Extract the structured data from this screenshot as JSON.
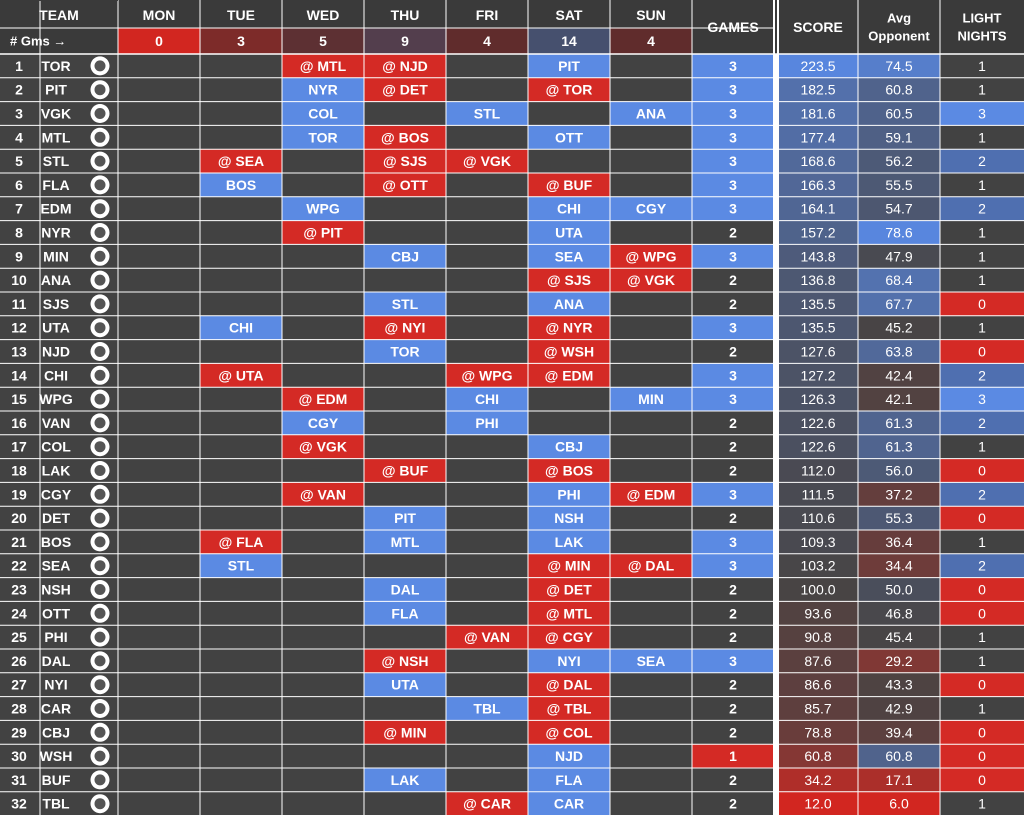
{
  "header": {
    "team": "TEAM",
    "days": [
      "MON",
      "TUE",
      "WED",
      "THU",
      "FRI",
      "SAT",
      "SUN"
    ],
    "games": "GAMES",
    "score": "SCORE",
    "avg_line1": "Avg",
    "avg_line2": "Opponent",
    "light_line1": "LIGHT",
    "light_line2": "NIGHTS",
    "gms_label": "# Gms →",
    "day_game_counts": [
      "0",
      "3",
      "5",
      "9",
      "4",
      "14",
      "4"
    ]
  },
  "colors": {
    "dark": "#424242",
    "blue": "#5b8ae3",
    "red": "#d42a25",
    "header": "#3a3a3a",
    "grid": "#ffffff"
  },
  "teams": [
    {
      "rank": "1",
      "abbr": "TOR",
      "logo": "toronto-maple-leafs-logo",
      "days": [
        "",
        "",
        "@ MTL",
        "@ NJD",
        "",
        "PIT",
        ""
      ],
      "games": "3",
      "score": "223.5",
      "avg": "74.5",
      "light": "1"
    },
    {
      "rank": "2",
      "abbr": "PIT",
      "logo": "pittsburgh-penguins-logo",
      "days": [
        "",
        "",
        "NYR",
        "@ DET",
        "",
        "@ TOR",
        ""
      ],
      "games": "3",
      "score": "182.5",
      "avg": "60.8",
      "light": "1"
    },
    {
      "rank": "3",
      "abbr": "VGK",
      "logo": "vegas-golden-knights-logo",
      "days": [
        "",
        "",
        "COL",
        "",
        "STL",
        "",
        "ANA"
      ],
      "games": "3",
      "score": "181.6",
      "avg": "60.5",
      "light": "3"
    },
    {
      "rank": "4",
      "abbr": "MTL",
      "logo": "montreal-canadiens-logo",
      "days": [
        "",
        "",
        "TOR",
        "@ BOS",
        "",
        "OTT",
        ""
      ],
      "games": "3",
      "score": "177.4",
      "avg": "59.1",
      "light": "1"
    },
    {
      "rank": "5",
      "abbr": "STL",
      "logo": "st-louis-blues-logo",
      "days": [
        "",
        "@ SEA",
        "",
        "@ SJS",
        "@ VGK",
        "",
        ""
      ],
      "games": "3",
      "score": "168.6",
      "avg": "56.2",
      "light": "2"
    },
    {
      "rank": "6",
      "abbr": "FLA",
      "logo": "florida-panthers-logo",
      "days": [
        "",
        "BOS",
        "",
        "@ OTT",
        "",
        "@ BUF",
        ""
      ],
      "games": "3",
      "score": "166.3",
      "avg": "55.5",
      "light": "1"
    },
    {
      "rank": "7",
      "abbr": "EDM",
      "logo": "edmonton-oilers-logo",
      "days": [
        "",
        "",
        "WPG",
        "",
        "",
        "CHI",
        "CGY"
      ],
      "games": "3",
      "score": "164.1",
      "avg": "54.7",
      "light": "2"
    },
    {
      "rank": "8",
      "abbr": "NYR",
      "logo": "new-york-rangers-logo",
      "days": [
        "",
        "",
        "@ PIT",
        "",
        "",
        "UTA",
        ""
      ],
      "games": "2",
      "score": "157.2",
      "avg": "78.6",
      "light": "1"
    },
    {
      "rank": "9",
      "abbr": "MIN",
      "logo": "minnesota-wild-logo",
      "days": [
        "",
        "",
        "",
        "CBJ",
        "",
        "SEA",
        "@ WPG"
      ],
      "games": "3",
      "score": "143.8",
      "avg": "47.9",
      "light": "1"
    },
    {
      "rank": "10",
      "abbr": "ANA",
      "logo": "anaheim-ducks-logo",
      "days": [
        "",
        "",
        "",
        "",
        "",
        "@ SJS",
        "@ VGK"
      ],
      "games": "2",
      "score": "136.8",
      "avg": "68.4",
      "light": "1"
    },
    {
      "rank": "11",
      "abbr": "SJS",
      "logo": "san-jose-sharks-logo",
      "days": [
        "",
        "",
        "",
        "STL",
        "",
        "ANA",
        ""
      ],
      "games": "2",
      "score": "135.5",
      "avg": "67.7",
      "light": "0"
    },
    {
      "rank": "12",
      "abbr": "UTA",
      "logo": "utah-hockey-club-logo",
      "days": [
        "",
        "CHI",
        "",
        "@ NYI",
        "",
        "@ NYR",
        ""
      ],
      "games": "3",
      "score": "135.5",
      "avg": "45.2",
      "light": "1"
    },
    {
      "rank": "13",
      "abbr": "NJD",
      "logo": "new-jersey-devils-logo",
      "days": [
        "",
        "",
        "",
        "TOR",
        "",
        "@ WSH",
        ""
      ],
      "games": "2",
      "score": "127.6",
      "avg": "63.8",
      "light": "0"
    },
    {
      "rank": "14",
      "abbr": "CHI",
      "logo": "chicago-blackhawks-logo",
      "days": [
        "",
        "@ UTA",
        "",
        "",
        "@ WPG",
        "@ EDM",
        ""
      ],
      "games": "3",
      "score": "127.2",
      "avg": "42.4",
      "light": "2"
    },
    {
      "rank": "15",
      "abbr": "WPG",
      "logo": "winnipeg-jets-logo",
      "days": [
        "",
        "",
        "@ EDM",
        "",
        "CHI",
        "",
        "MIN"
      ],
      "games": "3",
      "score": "126.3",
      "avg": "42.1",
      "light": "3"
    },
    {
      "rank": "16",
      "abbr": "VAN",
      "logo": "vancouver-canucks-logo",
      "days": [
        "",
        "",
        "CGY",
        "",
        "PHI",
        "",
        ""
      ],
      "games": "2",
      "score": "122.6",
      "avg": "61.3",
      "light": "2"
    },
    {
      "rank": "17",
      "abbr": "COL",
      "logo": "colorado-avalanche-logo",
      "days": [
        "",
        "",
        "@ VGK",
        "",
        "",
        "CBJ",
        ""
      ],
      "games": "2",
      "score": "122.6",
      "avg": "61.3",
      "light": "1"
    },
    {
      "rank": "18",
      "abbr": "LAK",
      "logo": "los-angeles-kings-logo",
      "days": [
        "",
        "",
        "",
        "@ BUF",
        "",
        "@ BOS",
        ""
      ],
      "games": "2",
      "score": "112.0",
      "avg": "56.0",
      "light": "0"
    },
    {
      "rank": "19",
      "abbr": "CGY",
      "logo": "calgary-flames-logo",
      "days": [
        "",
        "",
        "@ VAN",
        "",
        "",
        "PHI",
        "@ EDM"
      ],
      "games": "3",
      "score": "111.5",
      "avg": "37.2",
      "light": "2"
    },
    {
      "rank": "20",
      "abbr": "DET",
      "logo": "detroit-red-wings-logo",
      "days": [
        "",
        "",
        "",
        "PIT",
        "",
        "NSH",
        ""
      ],
      "games": "2",
      "score": "110.6",
      "avg": "55.3",
      "light": "0"
    },
    {
      "rank": "21",
      "abbr": "BOS",
      "logo": "boston-bruins-logo",
      "days": [
        "",
        "@ FLA",
        "",
        "MTL",
        "",
        "LAK",
        ""
      ],
      "games": "3",
      "score": "109.3",
      "avg": "36.4",
      "light": "1"
    },
    {
      "rank": "22",
      "abbr": "SEA",
      "logo": "seattle-kraken-logo",
      "days": [
        "",
        "STL",
        "",
        "",
        "",
        "@ MIN",
        "@ DAL"
      ],
      "games": "3",
      "score": "103.2",
      "avg": "34.4",
      "light": "2"
    },
    {
      "rank": "23",
      "abbr": "NSH",
      "logo": "nashville-predators-logo",
      "days": [
        "",
        "",
        "",
        "DAL",
        "",
        "@ DET",
        ""
      ],
      "games": "2",
      "score": "100.0",
      "avg": "50.0",
      "light": "0"
    },
    {
      "rank": "24",
      "abbr": "OTT",
      "logo": "ottawa-senators-logo",
      "days": [
        "",
        "",
        "",
        "FLA",
        "",
        "@ MTL",
        ""
      ],
      "games": "2",
      "score": "93.6",
      "avg": "46.8",
      "light": "0"
    },
    {
      "rank": "25",
      "abbr": "PHI",
      "logo": "philadelphia-flyers-logo",
      "days": [
        "",
        "",
        "",
        "",
        "@ VAN",
        "@ CGY",
        ""
      ],
      "games": "2",
      "score": "90.8",
      "avg": "45.4",
      "light": "1"
    },
    {
      "rank": "26",
      "abbr": "DAL",
      "logo": "dallas-stars-logo",
      "days": [
        "",
        "",
        "",
        "@ NSH",
        "",
        "NYI",
        "SEA"
      ],
      "games": "3",
      "score": "87.6",
      "avg": "29.2",
      "light": "1"
    },
    {
      "rank": "27",
      "abbr": "NYI",
      "logo": "new-york-islanders-logo",
      "days": [
        "",
        "",
        "",
        "UTA",
        "",
        "@ DAL",
        ""
      ],
      "games": "2",
      "score": "86.6",
      "avg": "43.3",
      "light": "0"
    },
    {
      "rank": "28",
      "abbr": "CAR",
      "logo": "carolina-hurricanes-logo",
      "days": [
        "",
        "",
        "",
        "",
        "TBL",
        "@ TBL",
        ""
      ],
      "games": "2",
      "score": "85.7",
      "avg": "42.9",
      "light": "1"
    },
    {
      "rank": "29",
      "abbr": "CBJ",
      "logo": "columbus-blue-jackets-logo",
      "days": [
        "",
        "",
        "",
        "@ MIN",
        "",
        "@ COL",
        ""
      ],
      "games": "2",
      "score": "78.8",
      "avg": "39.4",
      "light": "0"
    },
    {
      "rank": "30",
      "abbr": "WSH",
      "logo": "washington-capitals-logo",
      "days": [
        "",
        "",
        "",
        "",
        "",
        "NJD",
        ""
      ],
      "games": "1",
      "score": "60.8",
      "avg": "60.8",
      "light": "0"
    },
    {
      "rank": "31",
      "abbr": "BUF",
      "logo": "buffalo-sabres-logo",
      "days": [
        "",
        "",
        "",
        "LAK",
        "",
        "FLA",
        ""
      ],
      "games": "2",
      "score": "34.2",
      "avg": "17.1",
      "light": "0"
    },
    {
      "rank": "32",
      "abbr": "TBL",
      "logo": "tampa-bay-lightning-logo",
      "days": [
        "",
        "",
        "",
        "",
        "@ CAR",
        "CAR",
        ""
      ],
      "games": "2",
      "score": "12.0",
      "avg": "6.0",
      "light": "1"
    }
  ]
}
